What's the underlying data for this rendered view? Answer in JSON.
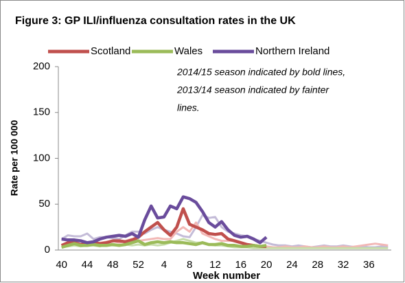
{
  "chart_data": {
    "type": "line",
    "title": "Figure 3: GP ILI/influenza  consultation rates  in the UK",
    "annotation": [
      "2014/15 season indicated by bold lines,",
      "2013/14 season indicated by fainter",
      "lines."
    ],
    "x_label": "Week number",
    "y_label": "Rate per 100 000",
    "categories": [
      40,
      null,
      null,
      null,
      44,
      null,
      null,
      null,
      48,
      null,
      null,
      null,
      52,
      null,
      null,
      null,
      4,
      null,
      null,
      null,
      8,
      null,
      null,
      null,
      12,
      null,
      null,
      null,
      16,
      null,
      null,
      null,
      20,
      null,
      null,
      null,
      24,
      null,
      null,
      null,
      28,
      null,
      null,
      null,
      32,
      null,
      null,
      null,
      36,
      null,
      null,
      null
    ],
    "ylim": [
      0,
      200
    ],
    "yticks": [
      0,
      50,
      100,
      150,
      200
    ],
    "series": [
      {
        "color": "#c4bcd8",
        "width": 3,
        "values": [
          12,
          16,
          15,
          15,
          18,
          12,
          14,
          14,
          13,
          12,
          16,
          20,
          20,
          18,
          22,
          25,
          22,
          20,
          18,
          15,
          14,
          25,
          38,
          35,
          36,
          25,
          20,
          18,
          16,
          15,
          12,
          10,
          8,
          6,
          5,
          5,
          4,
          5,
          4,
          3,
          4,
          5,
          4,
          4,
          5,
          4,
          3,
          4,
          3,
          3,
          4,
          3
        ]
      },
      {
        "color": "#f2b8b6",
        "width": 3,
        "values": [
          4,
          6,
          5,
          6,
          8,
          7,
          8,
          9,
          10,
          8,
          10,
          12,
          10,
          11,
          12,
          13,
          12,
          12,
          20,
          25,
          20,
          30,
          18,
          15,
          12,
          10,
          10,
          10,
          8,
          6,
          5,
          4,
          4,
          3,
          3,
          4,
          3,
          3,
          4,
          3,
          3,
          4,
          3,
          3,
          4,
          3,
          4,
          5,
          6,
          7,
          6,
          5
        ]
      },
      {
        "color": "#c6dca8",
        "width": 3,
        "values": [
          3,
          4,
          5,
          4,
          5,
          5,
          4,
          6,
          5,
          5,
          6,
          5,
          6,
          5,
          6,
          5,
          6,
          8,
          10,
          12,
          10,
          8,
          8,
          6,
          5,
          5,
          4,
          3,
          3,
          3,
          2,
          2,
          2,
          2,
          2,
          2,
          2,
          2,
          2,
          2,
          2,
          2,
          2,
          2,
          2,
          2,
          2,
          2,
          2,
          2,
          2,
          2
        ]
      },
      {
        "name": "Scotland",
        "color": "#c0504d",
        "width": 4.5,
        "values": [
          5,
          8,
          8,
          6,
          8,
          8,
          7,
          8,
          10,
          10,
          9,
          11,
          14,
          20,
          25,
          30,
          22,
          16,
          25,
          45,
          28,
          25,
          22,
          18,
          17,
          18,
          12,
          10,
          8,
          6,
          5,
          4,
          4,
          null,
          null,
          null,
          null,
          null,
          null,
          null,
          null,
          null,
          null,
          null,
          null,
          null,
          null,
          null,
          null,
          null,
          null,
          null
        ]
      },
      {
        "name": "Wales",
        "color": "#9bbb59",
        "width": 4.5,
        "values": [
          3,
          5,
          7,
          5,
          5,
          6,
          5,
          5,
          6,
          5,
          6,
          8,
          10,
          6,
          8,
          9,
          8,
          9,
          8,
          8,
          7,
          6,
          8,
          6,
          6,
          7,
          5,
          5,
          4,
          4,
          5,
          4,
          5,
          null,
          null,
          null,
          null,
          null,
          null,
          null,
          null,
          null,
          null,
          null,
          null,
          null,
          null,
          null,
          null,
          null,
          null,
          null
        ]
      },
      {
        "name": "Northern Ireland",
        "color": "#6a4c9c",
        "width": 4.5,
        "values": [
          12,
          11,
          11,
          10,
          8,
          9,
          12,
          14,
          15,
          16,
          15,
          18,
          14,
          33,
          48,
          35,
          36,
          48,
          45,
          58,
          56,
          52,
          42,
          30,
          25,
          31,
          22,
          16,
          14,
          15,
          12,
          8,
          14,
          null,
          null,
          null,
          null,
          null,
          null,
          null,
          null,
          null,
          null,
          null,
          null,
          null,
          null,
          null,
          null,
          null,
          null,
          null
        ]
      }
    ]
  }
}
